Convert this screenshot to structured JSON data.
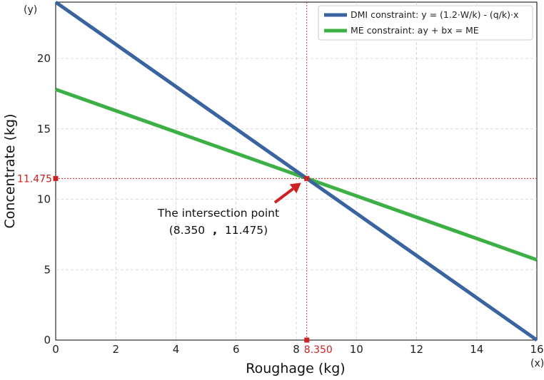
{
  "chart_data": {
    "type": "line",
    "xlabel": "Roughage (kg)",
    "ylabel": "Concentrate (kg)",
    "x_corner_label": "(x)",
    "y_corner_label": "(y)",
    "xlim": [
      0,
      16
    ],
    "ylim": [
      0,
      24
    ],
    "xticks": [
      "0",
      "2",
      "4",
      "6",
      "8",
      "10",
      "12",
      "14",
      "16"
    ],
    "xtick_values": [
      0,
      2,
      4,
      6,
      8,
      10,
      12,
      14,
      16
    ],
    "yticks": [
      "0",
      "5",
      "10",
      "15",
      "20"
    ],
    "ytick_values": [
      0,
      5,
      10,
      15,
      20
    ],
    "grid": true,
    "legend_position": "top-right",
    "series": [
      {
        "name": "DMI constraint: y = (1.2·W/k) - (q/k)·x",
        "x": [
          0,
          16
        ],
        "y": [
          24,
          0
        ],
        "color": "#3a64a0"
      },
      {
        "name": "ME constraint: ay + bx = ME",
        "x": [
          0,
          16
        ],
        "y": [
          17.8,
          5.7
        ],
        "color": "#3cb045"
      }
    ],
    "intersection": {
      "x": 8.35,
      "y": 11.475,
      "x_label": "8.350",
      "y_label": "11.475",
      "color": "#cc2222"
    },
    "annotation": {
      "line1": "The intersection point",
      "line2_left": "(8.350",
      "line2_sep": ",",
      "line2_right": "11.475)",
      "arrow_color": "#cc2222"
    }
  }
}
